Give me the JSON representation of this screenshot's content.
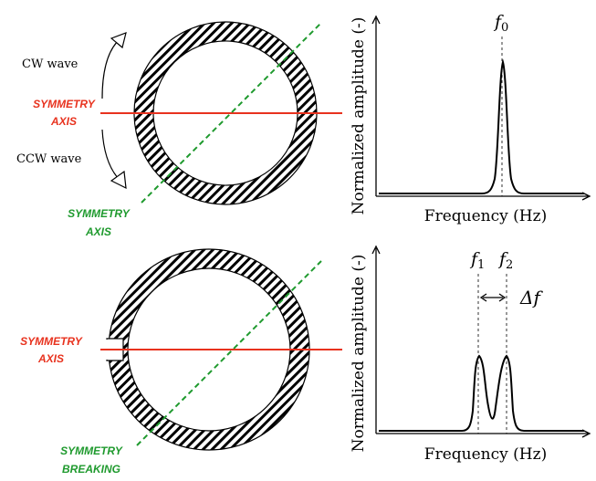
{
  "colors": {
    "symmetry_axis": "#e8321e",
    "green_axis": "#1f9a2e",
    "line": "#000000",
    "background": "#ffffff"
  },
  "top_ring": {
    "cw_label": "CW wave",
    "ccw_label": "CCW wave",
    "red_axis_label_line1": "SYMMETRY",
    "red_axis_label_line2": "AXIS",
    "green_axis_label_line1": "SYMMETRY",
    "green_axis_label_line2": "AXIS"
  },
  "bottom_ring": {
    "red_axis_label_line1": "SYMMETRY",
    "red_axis_label_line2": "AXIS",
    "green_axis_label_line1": "SYMMETRY",
    "green_axis_label_line2": "BREAKING"
  },
  "top_plot": {
    "ylabel": "Normalized amplitude (-)",
    "xlabel": "Frequency (Hz)",
    "peak_label": "f",
    "peak_sub": "0"
  },
  "bottom_plot": {
    "ylabel": "Normalized amplitude (-)",
    "xlabel": "Frequency (Hz)",
    "peak1_label": "f",
    "peak1_sub": "1",
    "peak2_label": "f",
    "peak2_sub": "2",
    "delta_label": "Δf"
  }
}
